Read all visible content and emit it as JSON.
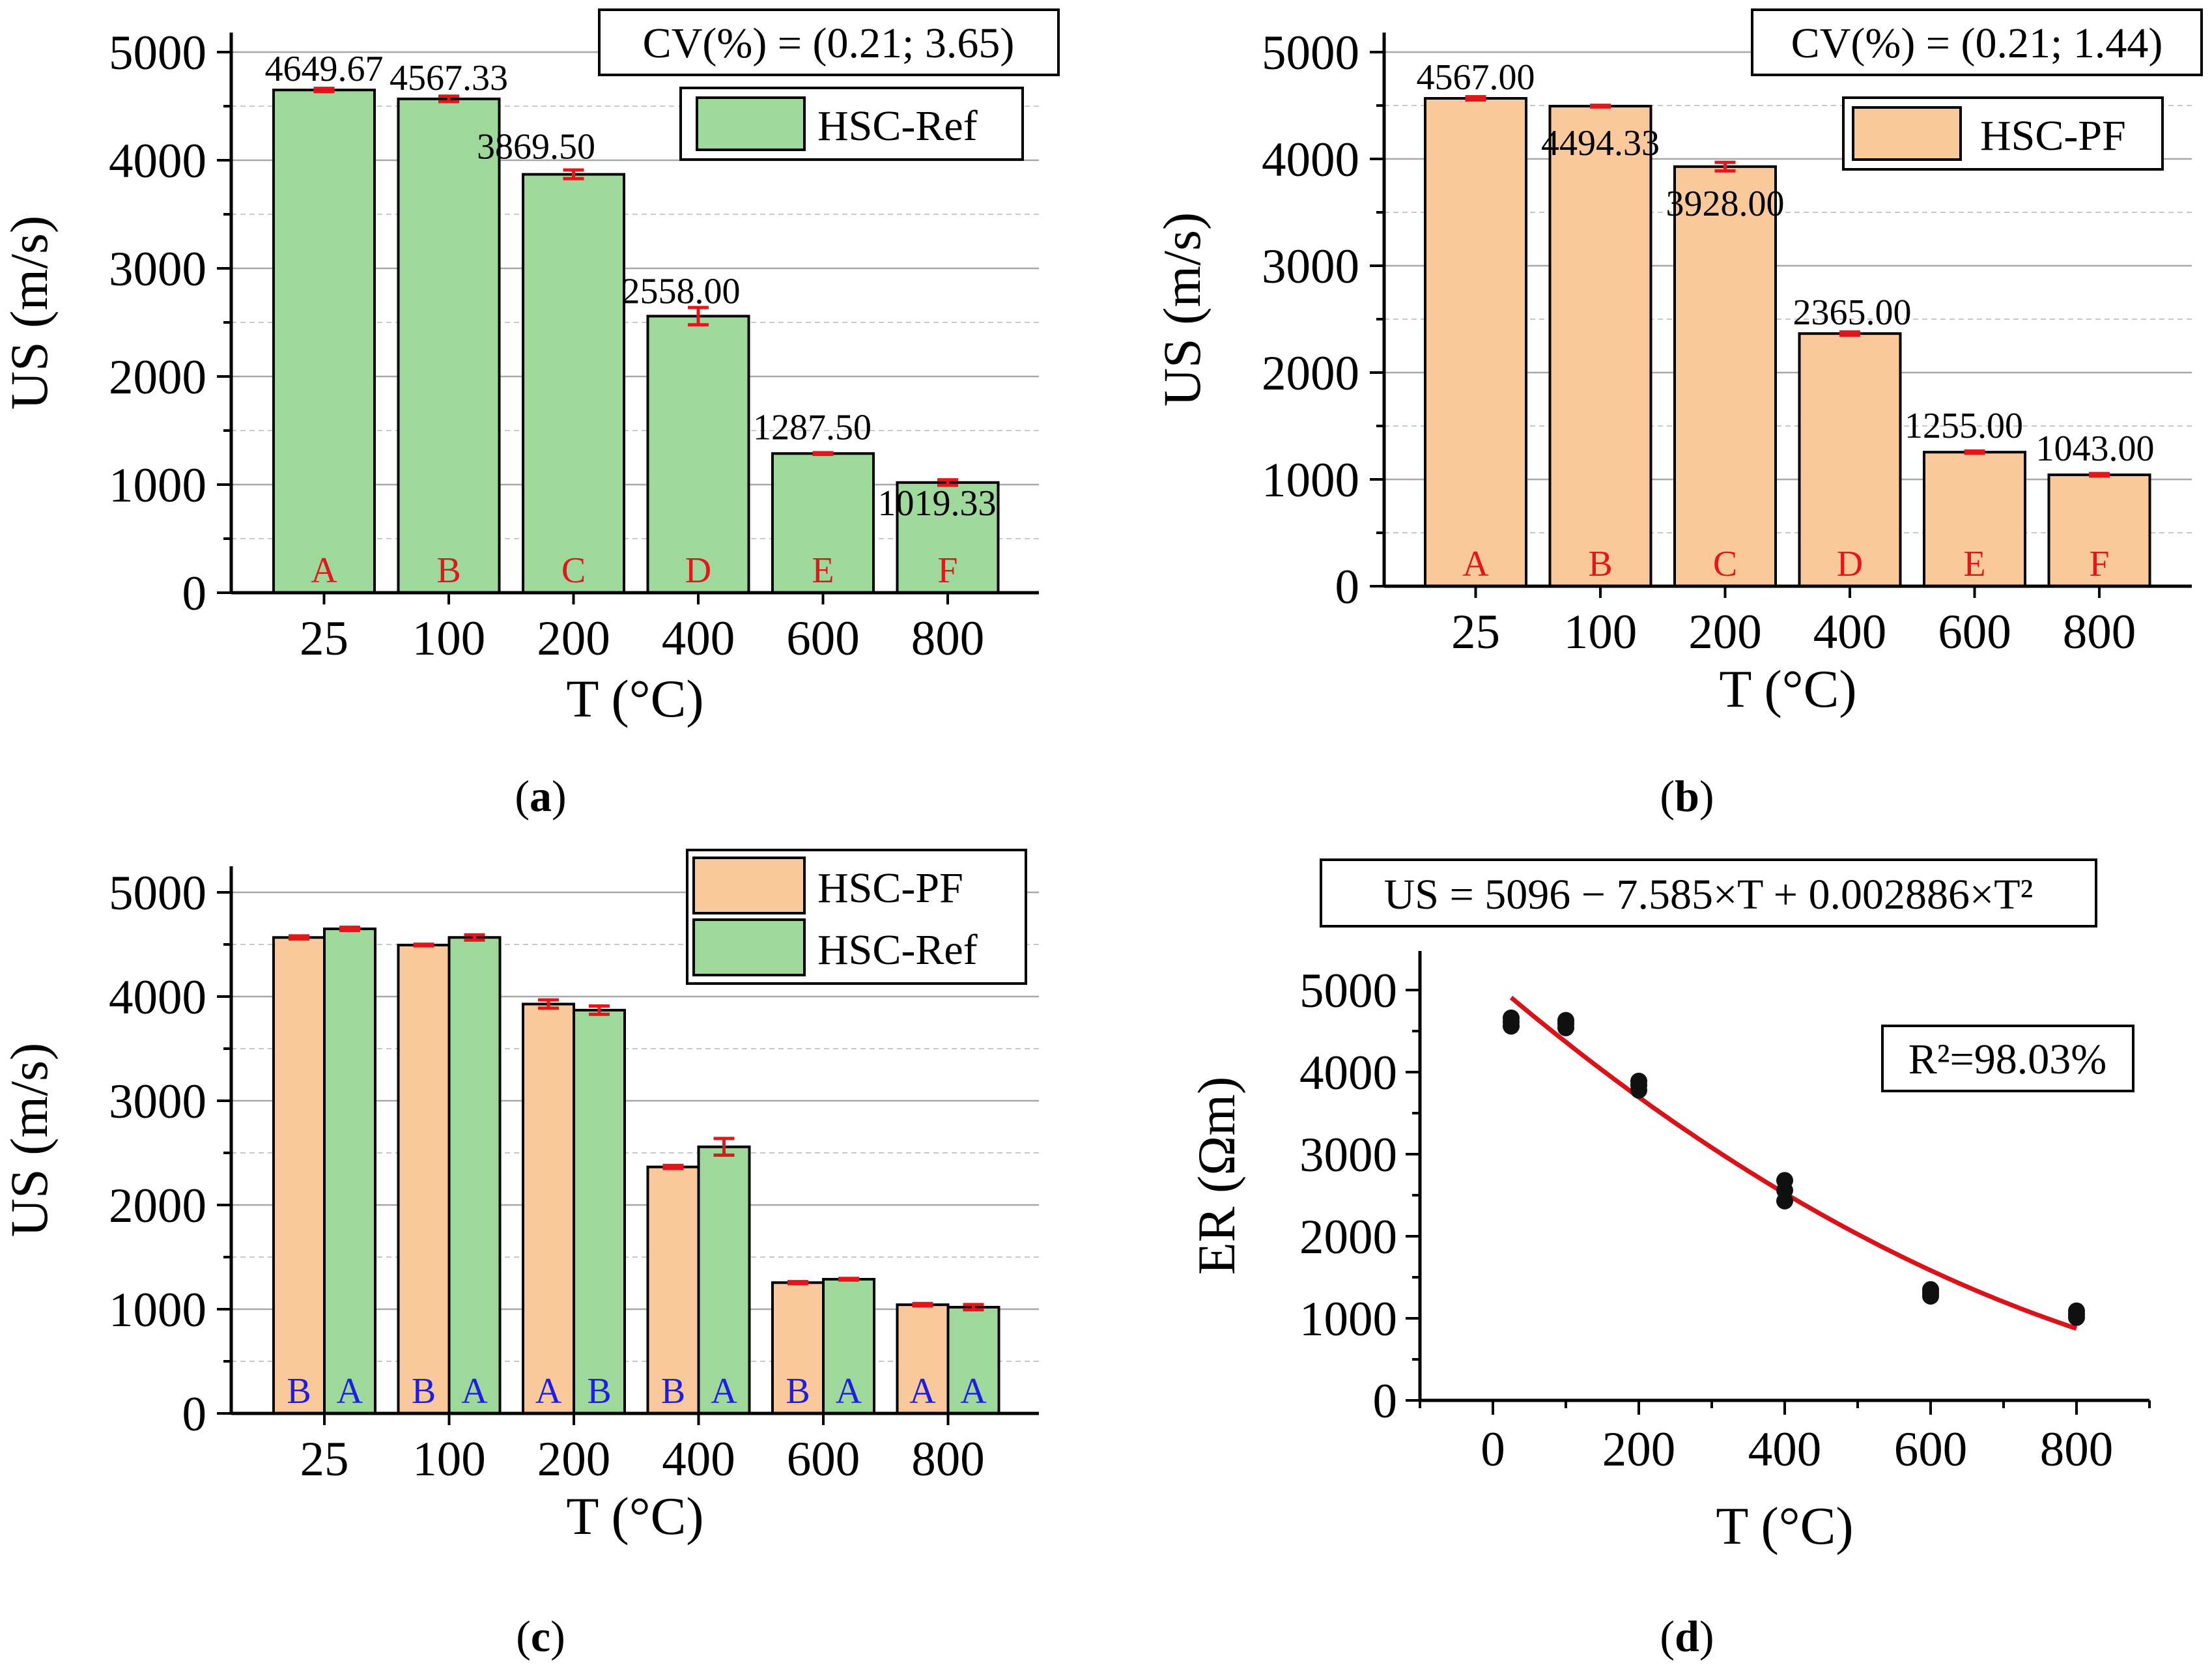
{
  "colors": {
    "ref": "#9ed99b",
    "pf": "#f9c89b",
    "error": "#e3161b",
    "letter_red": "#e3161b",
    "letter_blue": "#1d1de6",
    "fit": "#d8141a"
  },
  "chart_data": [
    {
      "id": "a",
      "type": "bar",
      "caption": "a",
      "title": "",
      "xlabel": "T (°C)",
      "ylabel": "US (m/s)",
      "ylim": [
        0,
        5000
      ],
      "yticks": [
        "0",
        "1000",
        "2000",
        "3000",
        "4000",
        "5000"
      ],
      "categories": [
        "25",
        "100",
        "200",
        "400",
        "600",
        "800"
      ],
      "series": [
        {
          "name": "HSC-Ref",
          "color": "#9ed99b",
          "values": [
            4649.67,
            4567.33,
            3869.5,
            2558.0,
            1287.5,
            1019.33
          ],
          "errors": [
            15,
            25,
            40,
            80,
            8,
            25
          ],
          "labels": [
            "4649.67",
            "4567.33",
            "3869.50",
            "2558.00",
            "1287.50",
            "1019.33"
          ],
          "letters": [
            "A",
            "B",
            "C",
            "D",
            "E",
            "F"
          ]
        }
      ],
      "annotation": "CV(%) = (0.21; 3.65)"
    },
    {
      "id": "b",
      "type": "bar",
      "caption": "b",
      "title": "",
      "xlabel": "T (°C)",
      "ylabel": "US (m/s)",
      "ylim": [
        0,
        5000
      ],
      "yticks": [
        "0",
        "1000",
        "2000",
        "3000",
        "4000",
        "5000"
      ],
      "categories": [
        "25",
        "100",
        "200",
        "400",
        "600",
        "800"
      ],
      "series": [
        {
          "name": "HSC-PF",
          "color": "#f9c89b",
          "values": [
            4567.0,
            4494.33,
            3928.0,
            2365.0,
            1255.0,
            1043.0
          ],
          "errors": [
            15,
            8,
            40,
            15,
            10,
            12
          ],
          "labels": [
            "4567.00",
            "4494.33",
            "3928.00",
            "2365.00",
            "1255.00",
            "1043.00"
          ],
          "letters": [
            "A",
            "B",
            "C",
            "D",
            "E",
            "F"
          ]
        }
      ],
      "annotation": "CV(%) = (0.21; 1.44)"
    },
    {
      "id": "c",
      "type": "bar",
      "caption": "c",
      "title": "",
      "xlabel": "T (°C)",
      "ylabel": "US (m/s)",
      "ylim": [
        0,
        5000
      ],
      "yticks": [
        "0",
        "1000",
        "2000",
        "3000",
        "4000",
        "5000"
      ],
      "categories": [
        "25",
        "100",
        "200",
        "400",
        "600",
        "800"
      ],
      "series": [
        {
          "name": "HSC-PF",
          "color": "#f9c89b",
          "values": [
            4567.0,
            4494.33,
            3928.0,
            2365.0,
            1255.0,
            1043.0
          ],
          "errors": [
            15,
            8,
            40,
            15,
            10,
            12
          ],
          "letters": [
            "B",
            "B",
            "A",
            "B",
            "B",
            "A"
          ]
        },
        {
          "name": "HSC-Ref",
          "color": "#9ed99b",
          "values": [
            4649.67,
            4567.33,
            3869.5,
            2558.0,
            1287.5,
            1019.33
          ],
          "errors": [
            15,
            25,
            40,
            80,
            8,
            25
          ],
          "letters": [
            "A",
            "A",
            "B",
            "A",
            "A",
            "A"
          ]
        }
      ]
    },
    {
      "id": "d",
      "type": "scatter",
      "caption": "d",
      "title": "US = 5096 − 7.585×T + 0.002886×T²",
      "xlabel": "T (°C)",
      "ylabel": "ER (Ωm)",
      "xlim": [
        -100,
        900
      ],
      "ylim": [
        0,
        5000
      ],
      "xticks": [
        "0",
        "200",
        "400",
        "600",
        "800"
      ],
      "yticks": [
        "0",
        "1000",
        "2000",
        "3000",
        "4000",
        "5000"
      ],
      "points": [
        {
          "x": 25,
          "y": 4560
        },
        {
          "x": 25,
          "y": 4610
        },
        {
          "x": 25,
          "y": 4660
        },
        {
          "x": 100,
          "y": 4540
        },
        {
          "x": 100,
          "y": 4590
        },
        {
          "x": 100,
          "y": 4630
        },
        {
          "x": 200,
          "y": 3780
        },
        {
          "x": 200,
          "y": 3840
        },
        {
          "x": 200,
          "y": 3890
        },
        {
          "x": 400,
          "y": 2430
        },
        {
          "x": 400,
          "y": 2560
        },
        {
          "x": 400,
          "y": 2680
        },
        {
          "x": 600,
          "y": 1270
        },
        {
          "x": 600,
          "y": 1310
        },
        {
          "x": 600,
          "y": 1350
        },
        {
          "x": 800,
          "y": 1010
        },
        {
          "x": 800,
          "y": 1050
        },
        {
          "x": 800,
          "y": 1090
        }
      ],
      "fit": {
        "a": 5096,
        "b": -7.585,
        "c": 0.002886,
        "x_range": [
          25,
          800
        ]
      },
      "annotation": "R²=98.03%"
    }
  ]
}
